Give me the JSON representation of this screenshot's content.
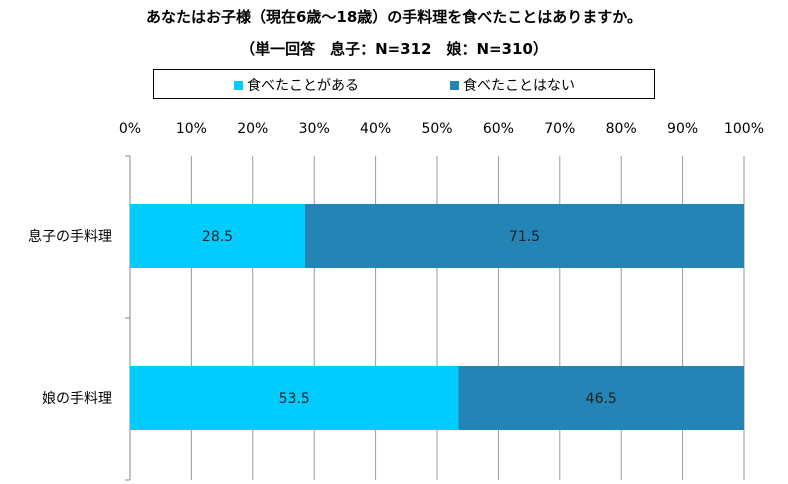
{
  "chart_data": {
    "type": "bar",
    "orientation": "horizontal",
    "stacked": true,
    "title": "あなたはお子様（現在6歳～18歳）の手料理を食べたことはありますか。",
    "subtitle": "（単一回答　息子：N=312　娘：N=310）",
    "categories": [
      "息子の手料理",
      "娘の手料理"
    ],
    "series": [
      {
        "name": "食べたことがある",
        "values": [
          28.5,
          53.5
        ],
        "color": "#00CCFF"
      },
      {
        "name": "食べたことはない",
        "values": [
          71.5,
          46.5
        ],
        "color": "#2584B6"
      }
    ],
    "xlim": [
      0,
      100
    ],
    "xticks": [
      "0%",
      "10%",
      "20%",
      "30%",
      "40%",
      "50%",
      "60%",
      "70%",
      "80%",
      "90%",
      "100%"
    ],
    "grid": true,
    "legend_position": "top"
  }
}
